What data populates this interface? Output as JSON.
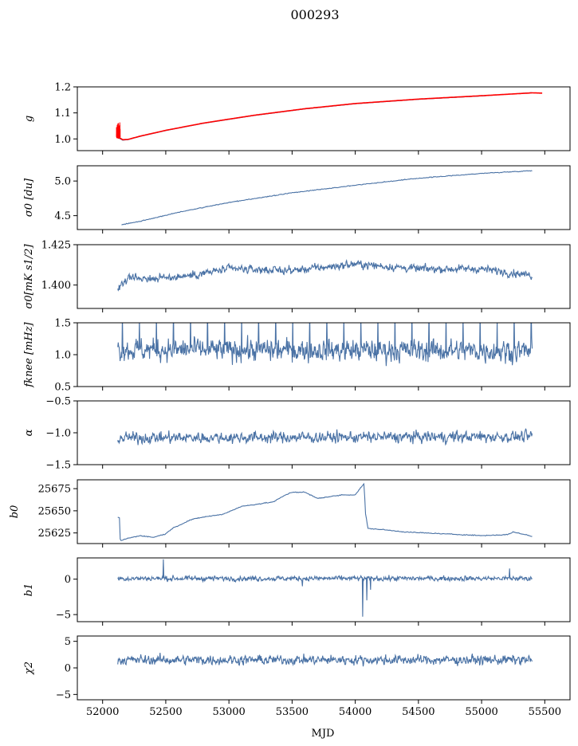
{
  "title": "000293",
  "xlabel": "MJD",
  "x_ticks": [
    52000,
    52500,
    53000,
    53500,
    54000,
    54500,
    55000,
    55500
  ],
  "colors": {
    "series": "#4a72a5",
    "fit": "#ff0000"
  },
  "chart_data": [
    {
      "type": "line",
      "ylabel": "g",
      "ylim": [
        0.955,
        1.2
      ],
      "yticks": [
        1.0,
        1.1,
        1.2
      ],
      "ytick_labels": [
        "1.0",
        "1.1",
        "1.2"
      ],
      "series": [
        {
          "color": "#4a72a5",
          "kind": "curve",
          "x": [
            52120,
            52160,
            52200,
            52300,
            52500,
            52800,
            53200,
            53600,
            54000,
            54500,
            55000,
            55400
          ],
          "y": [
            1.005,
            0.995,
            0.997,
            1.01,
            1.032,
            1.06,
            1.09,
            1.115,
            1.135,
            1.152,
            1.165,
            1.178
          ]
        },
        {
          "color": "#ff0000",
          "kind": "fit",
          "x": [
            52120,
            52160,
            52200,
            52300,
            52500,
            52800,
            53200,
            53600,
            54000,
            54500,
            55000,
            55400,
            55480
          ],
          "y": [
            1.008,
            0.997,
            0.998,
            1.011,
            1.033,
            1.061,
            1.091,
            1.116,
            1.136,
            1.153,
            1.166,
            1.177,
            1.176
          ]
        }
      ]
    },
    {
      "type": "line",
      "ylabel": "σ0 [du]",
      "ylim": [
        4.3,
        5.22
      ],
      "yticks": [
        4.5,
        5.0
      ],
      "ytick_labels": [
        "4.5",
        "5.0"
      ],
      "series": [
        {
          "color": "#4a72a5",
          "kind": "curve",
          "x": [
            52150,
            52300,
            52600,
            53000,
            53500,
            54000,
            54500,
            55000,
            55400
          ],
          "y": [
            4.37,
            4.42,
            4.55,
            4.69,
            4.83,
            4.94,
            5.04,
            5.11,
            5.15
          ]
        }
      ]
    },
    {
      "type": "line",
      "ylabel": "σ0[mK s1/2]",
      "ylim": [
        1.3855,
        1.425
      ],
      "yticks": [
        1.4,
        1.425
      ],
      "ytick_labels": [
        "1.400",
        "1.425"
      ],
      "series": [
        {
          "color": "#4a72a5",
          "kind": "noisy",
          "x_range": [
            52120,
            55400
          ],
          "trend_x": [
            52120,
            52200,
            52400,
            52700,
            53000,
            53500,
            54000,
            54500,
            55000,
            55400
          ],
          "trend_y": [
            1.398,
            1.405,
            1.404,
            1.406,
            1.41,
            1.409,
            1.413,
            1.41,
            1.41,
            1.406
          ],
          "noise": 0.0025
        }
      ]
    },
    {
      "type": "line",
      "ylabel": "fknee [mHz]",
      "ylim": [
        0.5,
        1.5
      ],
      "yticks": [
        0.5,
        1.0,
        1.5
      ],
      "ytick_labels": [
        "0.5",
        "1.0",
        "1.5"
      ],
      "series": [
        {
          "color": "#4a72a5",
          "kind": "noisy",
          "x_range": [
            52120,
            55400
          ],
          "trend_x": [
            52120,
            55400
          ],
          "trend_y": [
            1.08,
            1.06
          ],
          "noise": 0.18
        }
      ]
    },
    {
      "type": "line",
      "ylabel": "α",
      "ylim": [
        -1.5,
        -0.5
      ],
      "yticks": [
        -1.5,
        -1.0,
        -0.5
      ],
      "ytick_labels": [
        "−1.5",
        "−1.0",
        "−0.5"
      ],
      "series": [
        {
          "color": "#4a72a5",
          "kind": "noisy",
          "x_range": [
            52120,
            55400
          ],
          "trend_x": [
            52120,
            55400
          ],
          "trend_y": [
            -1.08,
            -1.06
          ],
          "noise": 0.09
        }
      ]
    },
    {
      "type": "line",
      "ylabel": "b0",
      "ylim": [
        25613,
        25685
      ],
      "yticks": [
        25625,
        25650,
        25675
      ],
      "ytick_labels": [
        "25625",
        "25650",
        "25675"
      ],
      "series": [
        {
          "color": "#4a72a5",
          "kind": "curve",
          "x": [
            52120,
            52135,
            52140,
            52200,
            52300,
            52400,
            52500,
            52550,
            52700,
            52800,
            52950,
            53100,
            53200,
            53350,
            53450,
            53500,
            53600,
            53700,
            53800,
            53900,
            54000,
            54070,
            54080,
            54100,
            54200,
            54400,
            54700,
            55000,
            55200,
            55250,
            55350,
            55400
          ],
          "y": [
            25643,
            25642,
            25616,
            25619,
            25622,
            25620,
            25624,
            25630,
            25640,
            25643,
            25646,
            25655,
            25657,
            25660,
            25668,
            25671,
            25671,
            25664,
            25666,
            25668,
            25668,
            25681,
            25648,
            25630,
            25629,
            25626,
            25624,
            25622,
            25623,
            25626,
            25623,
            25621
          ]
        }
      ]
    },
    {
      "type": "line",
      "ylabel": "b1",
      "ylim": [
        -6,
        3
      ],
      "yticks": [
        -5,
        0
      ],
      "ytick_labels": [
        "−5",
        "0"
      ],
      "series": [
        {
          "color": "#4a72a5",
          "kind": "noisy",
          "x_range": [
            52120,
            55400
          ],
          "trend_x": [
            52120,
            55400
          ],
          "trend_y": [
            0.1,
            0.1
          ],
          "noise": 0.35,
          "events": [
            {
              "x": 52480,
              "y": 2.8
            },
            {
              "x": 53580,
              "y": -1.0
            },
            {
              "x": 54060,
              "y": -5.3
            },
            {
              "x": 54090,
              "y": -3.0
            },
            {
              "x": 54120,
              "y": -1.5
            },
            {
              "x": 55220,
              "y": 1.5
            }
          ]
        }
      ]
    },
    {
      "type": "line",
      "ylabel": "χ2",
      "ylim": [
        -6,
        6
      ],
      "yticks": [
        -5,
        0,
        5
      ],
      "ytick_labels": [
        "−5",
        "0",
        "5"
      ],
      "series": [
        {
          "color": "#4a72a5",
          "kind": "noisy",
          "x_range": [
            52120,
            55400
          ],
          "trend_x": [
            52120,
            55400
          ],
          "trend_y": [
            1.5,
            1.5
          ],
          "noise": 0.9
        }
      ]
    }
  ]
}
